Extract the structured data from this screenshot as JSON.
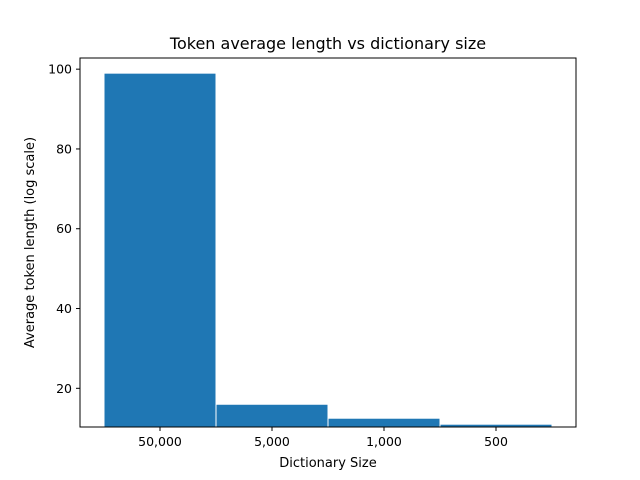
{
  "chart_data": {
    "type": "bar",
    "title": "Token average length vs dictionary size",
    "xlabel": "Dictionary Size",
    "ylabel": "Average token length (log scale)",
    "categories": [
      "50,000",
      "5,000",
      "1,000",
      "500"
    ],
    "values": [
      99,
      16,
      12.5,
      11
    ],
    "ylim": [
      10.3,
      102.8
    ],
    "yticks": [
      20,
      40,
      60,
      80,
      100
    ],
    "grid": false,
    "bar_color": "#1f77b4",
    "bar_edge_color": "#ffffff"
  }
}
